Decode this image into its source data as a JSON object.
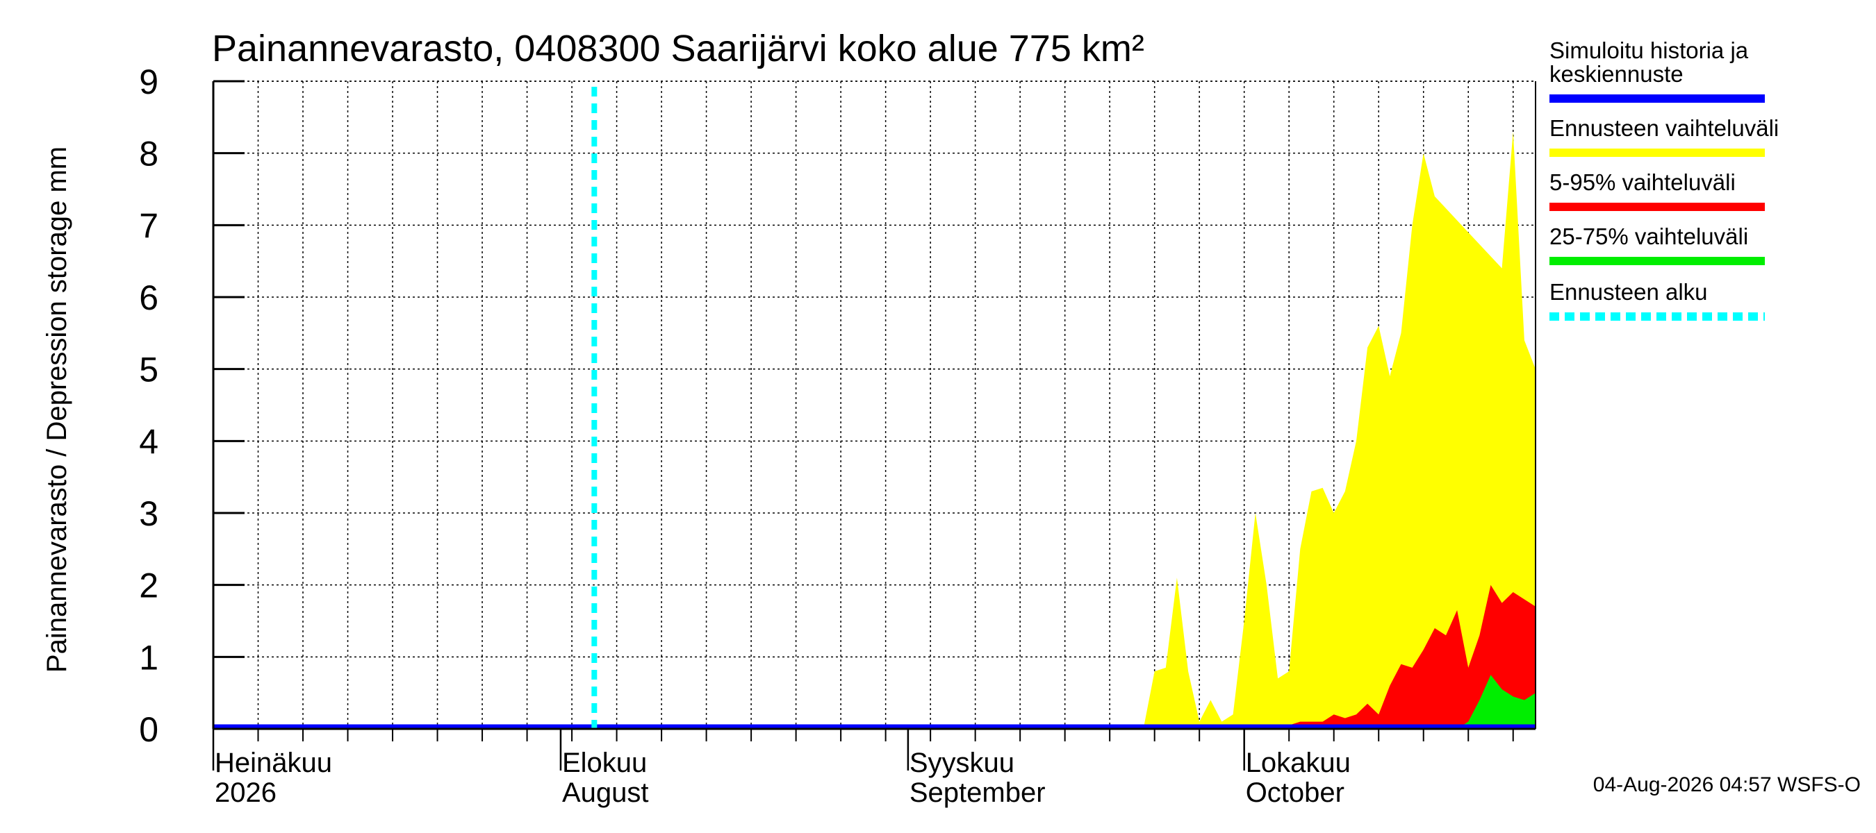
{
  "chart_data": {
    "type": "area",
    "title": "Painannevarasto, 0408300 Saarijärvi koko alue 775 km²",
    "ylabel": "Painannevarasto / Depression storage    mm",
    "ylim": [
      0,
      9
    ],
    "yticks": [
      "0",
      "1",
      "2",
      "3",
      "4",
      "5",
      "6",
      "7",
      "8",
      "9"
    ],
    "xlim": [
      "2026-07-01",
      "2026-10-27"
    ],
    "month_labels": [
      {
        "date": "2026-07-01",
        "fi": "Heinäkuu",
        "en": "2026"
      },
      {
        "date": "2026-08-01",
        "fi": "Elokuu",
        "en": "August"
      },
      {
        "date": "2026-09-01",
        "fi": "Syyskuu",
        "en": "September"
      },
      {
        "date": "2026-10-01",
        "fi": "Lokakuu",
        "en": "October"
      }
    ],
    "forecast_start": "2026-08-04",
    "grid": true,
    "legend_position": "right",
    "series": [
      {
        "name": "Ennusteen vaihteluväli",
        "color": "#ffff00",
        "kind": "band",
        "points": [
          [
            "2026-09-22",
            0
          ],
          [
            "2026-09-23",
            0.8
          ],
          [
            "2026-09-24",
            0.85
          ],
          [
            "2026-09-25",
            2.1
          ],
          [
            "2026-09-26",
            0.8
          ],
          [
            "2026-09-27",
            0.1
          ],
          [
            "2026-09-28",
            0.4
          ],
          [
            "2026-09-29",
            0.1
          ],
          [
            "2026-09-30",
            0.2
          ],
          [
            "2026-10-01",
            1.5
          ],
          [
            "2026-10-02",
            3.0
          ],
          [
            "2026-10-03",
            2.0
          ],
          [
            "2026-10-04",
            0.7
          ],
          [
            "2026-10-05",
            0.8
          ],
          [
            "2026-10-06",
            2.5
          ],
          [
            "2026-10-07",
            3.3
          ],
          [
            "2026-10-08",
            3.35
          ],
          [
            "2026-10-09",
            3.0
          ],
          [
            "2026-10-10",
            3.3
          ],
          [
            "2026-10-11",
            4.0
          ],
          [
            "2026-10-12",
            5.3
          ],
          [
            "2026-10-13",
            5.6
          ],
          [
            "2026-10-14",
            4.9
          ],
          [
            "2026-10-15",
            5.5
          ],
          [
            "2026-10-16",
            7.0
          ],
          [
            "2026-10-17",
            8.0
          ],
          [
            "2026-10-18",
            7.4
          ],
          [
            "2026-10-21",
            6.9
          ],
          [
            "2026-10-24",
            6.4
          ],
          [
            "2026-10-25",
            8.3
          ],
          [
            "2026-10-26",
            5.4
          ],
          [
            "2026-10-27",
            5.0
          ],
          [
            "2026-10-28",
            4.9
          ],
          [
            "2026-10-29",
            8.0
          ],
          [
            "2026-10-30",
            8.0
          ],
          [
            "2026-10-31",
            7.8
          ],
          [
            "2026-11-01",
            7.6
          ]
        ]
      },
      {
        "name": "5-95% vaihteluväli",
        "color": "#ff0000",
        "kind": "band",
        "points": [
          [
            "2026-10-04",
            0
          ],
          [
            "2026-10-05",
            0.05
          ],
          [
            "2026-10-06",
            0.1
          ],
          [
            "2026-10-07",
            0.1
          ],
          [
            "2026-10-08",
            0.1
          ],
          [
            "2026-10-09",
            0.2
          ],
          [
            "2026-10-10",
            0.15
          ],
          [
            "2026-10-11",
            0.2
          ],
          [
            "2026-10-12",
            0.35
          ],
          [
            "2026-10-13",
            0.2
          ],
          [
            "2026-10-14",
            0.6
          ],
          [
            "2026-10-15",
            0.9
          ],
          [
            "2026-10-16",
            0.85
          ],
          [
            "2026-10-17",
            1.1
          ],
          [
            "2026-10-18",
            1.4
          ],
          [
            "2026-10-19",
            1.3
          ],
          [
            "2026-10-20",
            1.65
          ],
          [
            "2026-10-21",
            0.85
          ],
          [
            "2026-10-22",
            1.3
          ],
          [
            "2026-10-23",
            2.0
          ],
          [
            "2026-10-24",
            1.75
          ],
          [
            "2026-10-25",
            1.9
          ],
          [
            "2026-10-27",
            1.7
          ],
          [
            "2026-10-28",
            3.4
          ],
          [
            "2026-10-29",
            3.65
          ],
          [
            "2026-10-30",
            3.6
          ],
          [
            "2026-10-31",
            2.65
          ],
          [
            "2026-11-01",
            2.55
          ],
          [
            "2026-11-02",
            2.8
          ]
        ]
      },
      {
        "name": "25-75% vaihteluväli",
        "color": "#00ee00",
        "kind": "band",
        "points": [
          [
            "2026-10-20",
            0
          ],
          [
            "2026-10-21",
            0.1
          ],
          [
            "2026-10-22",
            0.4
          ],
          [
            "2026-10-23",
            0.75
          ],
          [
            "2026-10-24",
            0.55
          ],
          [
            "2026-10-25",
            0.45
          ],
          [
            "2026-10-26",
            0.4
          ],
          [
            "2026-10-27",
            0.5
          ],
          [
            "2026-10-28",
            0.5
          ],
          [
            "2026-10-29",
            0.55
          ],
          [
            "2026-10-30",
            1.05
          ],
          [
            "2026-10-31",
            1.2
          ],
          [
            "2026-11-01",
            1.3
          ],
          [
            "2026-11-02",
            1.25
          ]
        ]
      },
      {
        "name": "Simuloitu historia ja keskiennuste",
        "color": "#0000ff",
        "kind": "line",
        "points": [
          [
            "2026-07-01",
            0
          ],
          [
            "2026-10-28",
            0
          ],
          [
            "2026-10-29",
            0.05
          ],
          [
            "2026-10-30",
            0.08
          ],
          [
            "2026-10-31",
            0.05
          ],
          [
            "2026-11-01",
            0.1
          ],
          [
            "2026-11-02",
            0.12
          ]
        ]
      }
    ],
    "legend": [
      {
        "label": "Simuloitu historia ja keskiennuste",
        "color": "#0000ff",
        "style": "solid"
      },
      {
        "label": "Ennusteen vaihteluväli",
        "color": "#ffff00",
        "style": "solid"
      },
      {
        "label": "5-95% vaihteluväli",
        "color": "#ff0000",
        "style": "solid"
      },
      {
        "label": "25-75% vaihteluväli",
        "color": "#00ee00",
        "style": "solid"
      },
      {
        "label": "Ennusteen alku",
        "color": "#00ffff",
        "style": "dashed"
      }
    ],
    "forecast_line_color": "#00ffff",
    "footer": "04-Aug-2026 04:57 WSFS-O"
  }
}
